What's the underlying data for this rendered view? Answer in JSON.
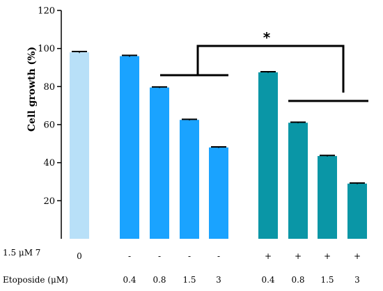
{
  "chart_data": {
    "type": "bar",
    "title": "",
    "xlabel": "",
    "ylabel": "Cell growth (%)",
    "ylim": [
      0,
      120
    ],
    "yticks": [
      20,
      40,
      60,
      80,
      100,
      120
    ],
    "grid": false,
    "bars": [
      {
        "value": 98,
        "error": 0.4,
        "group": "control",
        "color": "#b8e0f8",
        "row1": "0",
        "row2": ""
      },
      {
        "value": 96,
        "error": 0.4,
        "group": "etoposide",
        "color": "#1aa3ff",
        "row1": "-",
        "row2": "0.4"
      },
      {
        "value": 79.5,
        "error": 0.3,
        "group": "etoposide",
        "color": "#1aa3ff",
        "row1": "-",
        "row2": "0.8"
      },
      {
        "value": 62.5,
        "error": 0.3,
        "group": "etoposide",
        "color": "#1aa3ff",
        "row1": "-",
        "row2": "1.5"
      },
      {
        "value": 48,
        "error": 0.3,
        "group": "etoposide",
        "color": "#1aa3ff",
        "row1": "-",
        "row2": "3"
      },
      {
        "value": 87.5,
        "error": 0.3,
        "group": "combination",
        "color": "#0a96a6",
        "row1": "+",
        "row2": "0.4"
      },
      {
        "value": 61,
        "error": 0.3,
        "group": "combination",
        "color": "#0a96a6",
        "row1": "+",
        "row2": "0.8"
      },
      {
        "value": 43.5,
        "error": 0.3,
        "group": "combination",
        "color": "#0a96a6",
        "row1": "+",
        "row2": "1.5"
      },
      {
        "value": 29,
        "error": 0.3,
        "group": "combination",
        "color": "#0a96a6",
        "row1": "+",
        "row2": "3"
      }
    ],
    "row_labels": [
      "1.5 μM 7",
      "Etoposide (μM)"
    ],
    "significance": {
      "label": "*",
      "between": [
        "etoposide",
        "combination"
      ]
    }
  }
}
